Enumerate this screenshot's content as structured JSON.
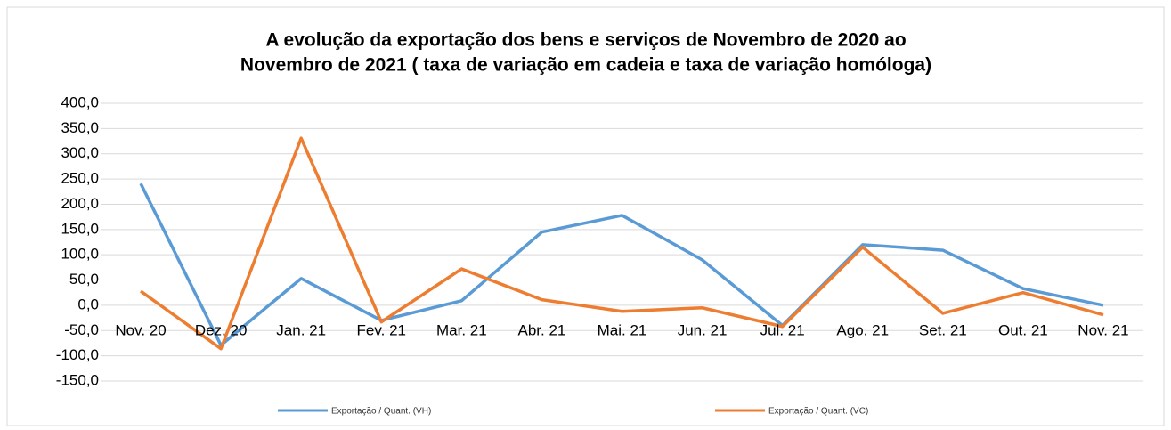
{
  "chart_data": {
    "type": "line",
    "title": [
      "A evolução da exportação dos bens e serviços de Novembro de 2020 ao",
      "Novembro de 2021 ( taxa de variação em cadeia e taxa de variação homóloga)"
    ],
    "categories": [
      "Nov. 20",
      "Dez. 20",
      "Jan. 21",
      "Fev. 21",
      "Mar. 21",
      "Abr. 21",
      "Mai. 21",
      "Jun. 21",
      "Jul. 21",
      "Ago. 21",
      "Set. 21",
      "Out. 21",
      "Nov. 21"
    ],
    "series": [
      {
        "name": "Exportação / Quant. (VH)",
        "color": "#5b9bd5",
        "values": [
          241,
          -79,
          53,
          -30,
          9,
          145,
          178,
          90,
          -40,
          120,
          109,
          33,
          0
        ]
      },
      {
        "name": "Exportação / Quant. (VC)",
        "color": "#ed7d31",
        "values": [
          28,
          -86,
          331,
          -33,
          72,
          11,
          -12,
          -5,
          -42,
          115,
          -16,
          25,
          -19
        ]
      }
    ],
    "ylim": [
      -150,
      400
    ],
    "yticks": [
      {
        "value": -150,
        "label": "-150,0"
      },
      {
        "value": -100,
        "label": "-100,0"
      },
      {
        "value": -50,
        "label": "-50,0"
      },
      {
        "value": 0,
        "label": "0,0"
      },
      {
        "value": 50,
        "label": "50,0"
      },
      {
        "value": 100,
        "label": "100,0"
      },
      {
        "value": 150,
        "label": "150,0"
      },
      {
        "value": 200,
        "label": "200,0"
      },
      {
        "value": 250,
        "label": "250,0"
      },
      {
        "value": 300,
        "label": "300,0"
      },
      {
        "value": 350,
        "label": "350,0"
      },
      {
        "value": 400,
        "label": "400,0"
      }
    ],
    "grid": true,
    "legend": "bottom"
  }
}
